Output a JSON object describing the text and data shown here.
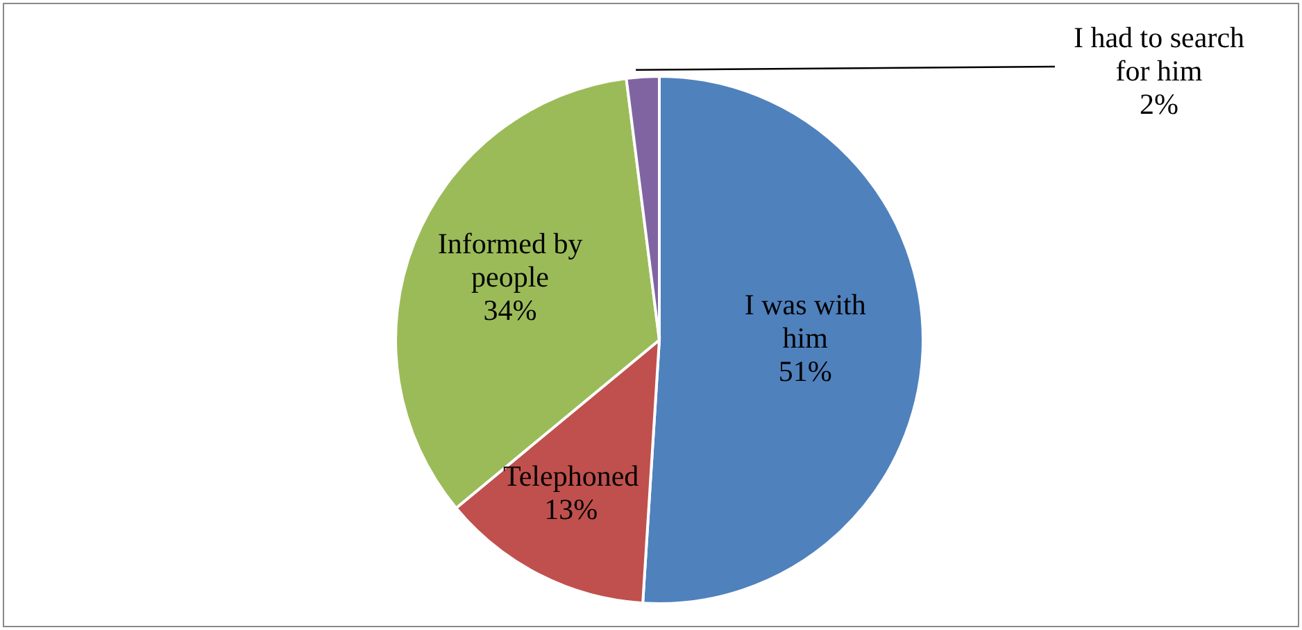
{
  "chart_data": {
    "type": "pie",
    "categories": [
      "I was with him",
      "Telephoned",
      "Informed by people",
      "I had to search for him"
    ],
    "values": [
      51,
      13,
      34,
      2
    ],
    "colors": [
      "#4f81bd",
      "#c0504d",
      "#9bbb59",
      "#8064a2"
    ],
    "value_labels": [
      "51%",
      "13%",
      "34%",
      "2%"
    ]
  }
}
